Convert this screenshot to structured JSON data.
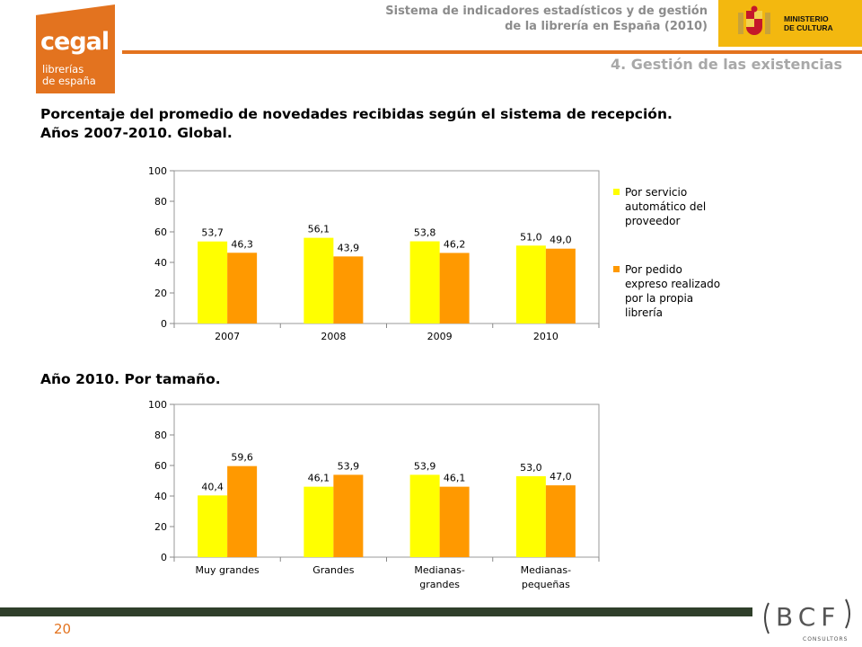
{
  "logo": {
    "brand": "cegal",
    "line1": "librerías",
    "line2": "de españa"
  },
  "header": {
    "line1": "Sistema de indicadores estadísticos y de gestión",
    "line2": "de la librería en España (2010)",
    "ministry_line1": "MINISTERIO",
    "ministry_line2": "DE CULTURA"
  },
  "section_title": "4. Gestión de las existencias",
  "title1_line1": "Porcentaje del promedio de novedades recibidas según el sistema de recepción.",
  "title1_line2": "Años 2007-2010. Global.",
  "title2": "Año 2010. Por tamaño.",
  "footer": {
    "page_number": "20",
    "consultant": "CONSULTORS"
  },
  "colors": {
    "series1": "#ffff00",
    "series2": "#ff9900",
    "accent": "#e3731f"
  },
  "chart_data": [
    {
      "type": "bar",
      "categories": [
        [
          "2007"
        ],
        [
          "2008"
        ],
        [
          "2009"
        ],
        [
          "2010"
        ]
      ],
      "series": [
        {
          "name": "Por servicio automático del proveedor",
          "values": [
            53.7,
            56.1,
            53.8,
            51.0
          ],
          "labels": [
            "53,7",
            "56,1",
            "53,8",
            "51,0"
          ]
        },
        {
          "name": "Por pedido expreso realizado por la propia librería",
          "values": [
            46.3,
            43.9,
            46.2,
            49.0
          ],
          "labels": [
            "46,3",
            "43,9",
            "46,2",
            "49,0"
          ]
        }
      ],
      "legend_lines": [
        [
          "Por servicio",
          "automático del",
          "proveedor"
        ],
        [
          "Por pedido",
          "expreso realizado",
          "por la propia",
          "librería"
        ]
      ],
      "yticks": [
        "0",
        "20",
        "40",
        "60",
        "80",
        "100"
      ],
      "ylim": [
        0,
        100
      ],
      "legend": "right"
    },
    {
      "type": "bar",
      "categories": [
        [
          "Muy grandes"
        ],
        [
          "Grandes"
        ],
        [
          "Medianas-",
          "grandes"
        ],
        [
          "Medianas-",
          "pequeñas"
        ]
      ],
      "series": [
        {
          "values": [
            40.4,
            46.1,
            53.9,
            53.0
          ],
          "labels": [
            "40,4",
            "46,1",
            "53,9",
            "53,0"
          ]
        },
        {
          "values": [
            59.6,
            53.9,
            46.1,
            47.0
          ],
          "labels": [
            "59,6",
            "53,9",
            "46,1",
            "47,0"
          ]
        }
      ],
      "yticks": [
        "0",
        "20",
        "40",
        "60",
        "80",
        "100"
      ],
      "ylim": [
        0,
        100
      ]
    }
  ]
}
